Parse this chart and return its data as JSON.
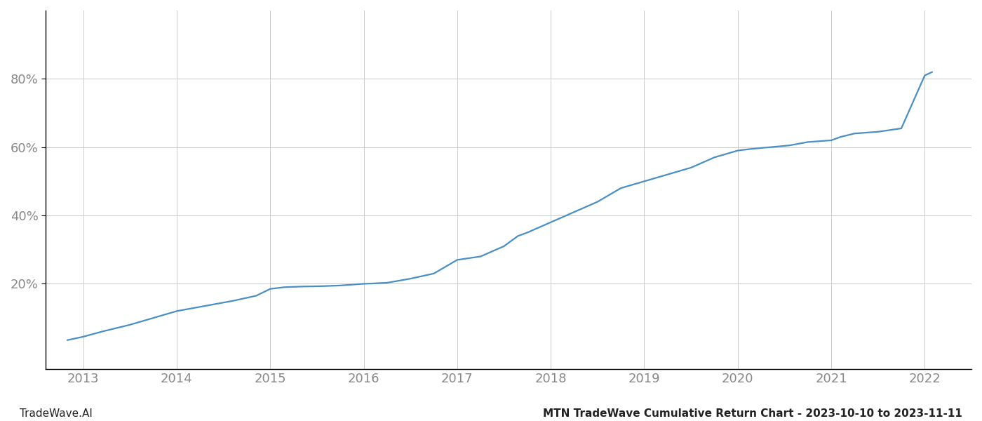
{
  "title": "MTN TradeWave Cumulative Return Chart - 2023-10-10 to 2023-11-11",
  "watermark": "TradeWave.AI",
  "line_color": "#4a8fc4",
  "background_color": "#ffffff",
  "grid_color": "#cccccc",
  "x_years": [
    2013,
    2014,
    2015,
    2016,
    2017,
    2018,
    2019,
    2020,
    2021,
    2022
  ],
  "x_values": [
    2012.83,
    2013.0,
    2013.2,
    2013.5,
    2013.75,
    2014.0,
    2014.3,
    2014.6,
    2014.85,
    2015.0,
    2015.15,
    2015.35,
    2015.55,
    2015.75,
    2016.0,
    2016.1,
    2016.25,
    2016.5,
    2016.75,
    2017.0,
    2017.25,
    2017.5,
    2017.65,
    2017.75,
    2018.0,
    2018.25,
    2018.5,
    2018.75,
    2019.0,
    2019.25,
    2019.5,
    2019.75,
    2020.0,
    2020.15,
    2020.35,
    2020.55,
    2020.75,
    2021.0,
    2021.1,
    2021.25,
    2021.5,
    2021.75,
    2022.0,
    2022.08
  ],
  "y_values": [
    3.5,
    4.5,
    6,
    8,
    10,
    12,
    13.5,
    15,
    16.5,
    18.5,
    19,
    19.2,
    19.3,
    19.5,
    20,
    20.1,
    20.3,
    21.5,
    23,
    27,
    28,
    31,
    34,
    35,
    38,
    41,
    44,
    48,
    50,
    52,
    54,
    57,
    59,
    59.5,
    60,
    60.5,
    61.5,
    62,
    63,
    64,
    64.5,
    65.5,
    81,
    82
  ],
  "yticks": [
    20,
    40,
    60,
    80
  ],
  "ytick_labels": [
    "20%",
    "40%",
    "60%",
    "80%"
  ],
  "ylim": [
    -5,
    100
  ],
  "xlim": [
    2012.6,
    2022.5
  ],
  "spine_color": "#000000",
  "tick_color": "#888888",
  "tick_fontsize": 13,
  "title_fontsize": 11,
  "watermark_fontsize": 11,
  "line_width": 1.6
}
